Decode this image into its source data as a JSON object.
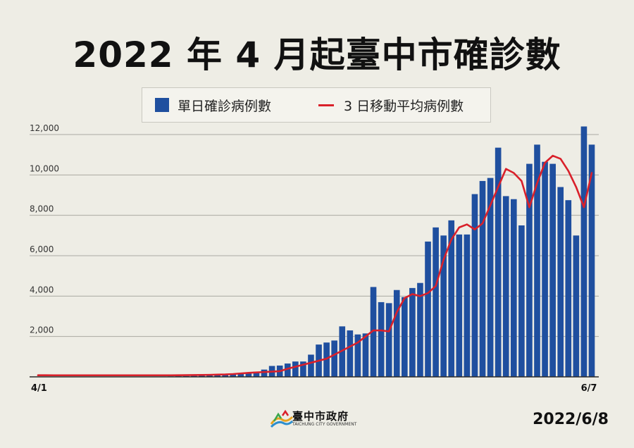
{
  "title": "2022 年 4 月起臺中市確診數",
  "legend": {
    "bar_label": "單日確診病例數",
    "line_label": "3 日移動平均病例數"
  },
  "colors": {
    "bar": "#1f4f9f",
    "line": "#d9202a"
  },
  "logo": {
    "name": "臺中市政府",
    "sub": "TAICHUNG CITY GOVERNMENT"
  },
  "date": "2022/6/8",
  "chart_data": {
    "type": "bar",
    "title": "2022 年 4 月起臺中市確診數",
    "x_tick_labels": [
      "4/1",
      "6/7"
    ],
    "ylim": [
      0,
      12500
    ],
    "yticks": [
      2000,
      4000,
      6000,
      8000,
      10000,
      12000
    ],
    "ytick_labels": [
      "2,000",
      "4,000",
      "6,000",
      "8,000",
      "10,000",
      "12,000"
    ],
    "grid": true,
    "legend_position": "top-center",
    "series": [
      {
        "name": "單日確診病例數",
        "type": "bar",
        "values": [
          5,
          4,
          6,
          5,
          4,
          5,
          6,
          5,
          7,
          8,
          9,
          10,
          12,
          14,
          16,
          18,
          20,
          24,
          30,
          40,
          50,
          60,
          80,
          90,
          110,
          140,
          170,
          210,
          260,
          360,
          540,
          560,
          660,
          760,
          760,
          1100,
          1600,
          1700,
          1800,
          2500,
          2300,
          2100,
          2150,
          4450,
          3700,
          3650,
          4300,
          3950,
          4400,
          4650,
          6700,
          7400,
          7000,
          7750,
          7050,
          7050,
          9050,
          9700,
          9850,
          11350,
          8950,
          8800,
          7500,
          10550,
          11500,
          10650,
          10550,
          9400,
          8750,
          7000,
          12400,
          11500
        ]
      },
      {
        "name": "3 日移動平均病例數",
        "type": "line",
        "values": [
          80,
          80,
          79,
          78,
          78,
          78,
          78,
          78,
          78,
          78,
          78,
          78,
          78,
          78,
          78,
          78,
          78,
          78,
          80,
          84,
          90,
          95,
          100,
          110,
          120,
          140,
          170,
          200,
          220,
          240,
          260,
          280,
          400,
          500,
          600,
          700,
          800,
          900,
          1100,
          1300,
          1500,
          1700,
          2000,
          2300,
          2300,
          2250,
          3200,
          3900,
          4100,
          4000,
          4150,
          4500,
          5800,
          6800,
          7400,
          7550,
          7300,
          7600,
          8500,
          9400,
          10300,
          10100,
          9700,
          8400,
          9600,
          10600,
          10950,
          10800,
          10200,
          9400,
          8400,
          10100
        ]
      }
    ]
  }
}
